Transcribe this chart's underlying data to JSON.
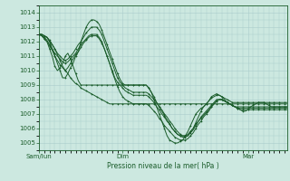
{
  "bg_color": "#cce8e0",
  "grid_color": "#aacccc",
  "line_color": "#1a5c2a",
  "xlabel": "Pression niveau de la mer( hPa )",
  "ylim": [
    1004.5,
    1014.5
  ],
  "yticks": [
    1005,
    1006,
    1007,
    1008,
    1009,
    1010,
    1011,
    1012,
    1013,
    1014
  ],
  "xlim": [
    0,
    95
  ],
  "xtick_positions": [
    0,
    32,
    80
  ],
  "xtick_labels": [
    "Sam/lun",
    "Dim",
    "Mar"
  ],
  "series": [
    [
      1012.5,
      1012.5,
      1012.4,
      1012.3,
      1012.1,
      1011.8,
      1011.5,
      1011.1,
      1010.7,
      1010.3,
      1010.0,
      1009.8,
      1009.5,
      1009.3,
      1009.1,
      1009.0,
      1008.8,
      1008.7,
      1008.6,
      1008.5,
      1008.4,
      1008.3,
      1008.2,
      1008.1,
      1008.0,
      1007.9,
      1007.8,
      1007.7,
      1007.7,
      1007.7,
      1007.7,
      1007.7,
      1007.7,
      1007.7,
      1007.7,
      1007.7,
      1007.7,
      1007.7,
      1007.7,
      1007.7,
      1007.7,
      1007.7,
      1007.7,
      1007.7,
      1007.7,
      1007.7,
      1007.7,
      1007.7,
      1007.7,
      1007.7,
      1007.7,
      1007.7,
      1007.7,
      1007.7,
      1007.7,
      1007.7,
      1007.7,
      1007.7,
      1007.7,
      1007.7,
      1007.7,
      1007.7,
      1007.7,
      1007.7,
      1007.7,
      1007.7,
      1007.7,
      1007.7,
      1007.7,
      1007.7,
      1007.7,
      1007.7,
      1007.7,
      1007.7,
      1007.7,
      1007.7,
      1007.7,
      1007.7,
      1007.7,
      1007.7,
      1007.7,
      1007.7,
      1007.7,
      1007.7,
      1007.7,
      1007.7,
      1007.7,
      1007.7,
      1007.7,
      1007.7,
      1007.7,
      1007.7,
      1007.7,
      1007.7,
      1007.7,
      1007.7
    ],
    [
      1012.5,
      1012.4,
      1012.2,
      1012.0,
      1011.5,
      1011.0,
      1010.3,
      1010.0,
      1010.2,
      1010.5,
      1011.0,
      1011.2,
      1010.8,
      1010.3,
      1009.8,
      1009.3,
      1009.0,
      1009.0,
      1009.0,
      1009.0,
      1009.0,
      1009.0,
      1009.0,
      1009.0,
      1009.0,
      1009.0,
      1009.0,
      1009.0,
      1009.0,
      1009.0,
      1009.0,
      1009.0,
      1009.0,
      1009.0,
      1009.0,
      1009.0,
      1009.0,
      1009.0,
      1009.0,
      1009.0,
      1009.0,
      1009.0,
      1008.8,
      1008.5,
      1008.2,
      1007.8,
      1007.5,
      1007.2,
      1006.9,
      1006.6,
      1006.3,
      1006.0,
      1005.8,
      1005.6,
      1005.5,
      1005.5,
      1005.5,
      1005.5,
      1005.8,
      1006.0,
      1006.4,
      1006.8,
      1007.2,
      1007.5,
      1007.7,
      1007.9,
      1008.1,
      1008.2,
      1008.3,
      1008.3,
      1008.2,
      1008.1,
      1008.0,
      1007.9,
      1007.8,
      1007.8,
      1007.8,
      1007.8,
      1007.8,
      1007.8,
      1007.8,
      1007.8,
      1007.8,
      1007.8,
      1007.8,
      1007.8,
      1007.8,
      1007.8,
      1007.8,
      1007.8,
      1007.8,
      1007.8,
      1007.8,
      1007.8,
      1007.8,
      1007.8
    ],
    [
      1012.5,
      1012.5,
      1012.4,
      1012.3,
      1012.0,
      1011.5,
      1011.0,
      1010.5,
      1010.0,
      1009.5,
      1009.5,
      1009.8,
      1010.2,
      1010.5,
      1011.0,
      1011.3,
      1012.0,
      1012.5,
      1013.0,
      1013.3,
      1013.5,
      1013.5,
      1013.4,
      1013.2,
      1012.8,
      1012.3,
      1011.8,
      1011.3,
      1010.8,
      1010.3,
      1009.8,
      1009.4,
      1009.1,
      1009.0,
      1009.0,
      1009.0,
      1009.0,
      1009.0,
      1009.0,
      1009.0,
      1009.0,
      1009.0,
      1008.8,
      1008.5,
      1008.0,
      1007.5,
      1007.0,
      1006.5,
      1006.0,
      1005.5,
      1005.2,
      1005.1,
      1005.0,
      1005.0,
      1005.1,
      1005.2,
      1005.5,
      1005.8,
      1006.2,
      1006.6,
      1007.0,
      1007.2,
      1007.4,
      1007.5,
      1007.7,
      1007.9,
      1008.2,
      1008.3,
      1008.4,
      1008.3,
      1008.2,
      1008.0,
      1007.8,
      1007.7,
      1007.6,
      1007.5,
      1007.4,
      1007.3,
      1007.2,
      1007.2,
      1007.3,
      1007.5,
      1007.6,
      1007.7,
      1007.8,
      1007.8,
      1007.8,
      1007.7,
      1007.6,
      1007.5,
      1007.5,
      1007.5,
      1007.5,
      1007.5,
      1007.5,
      1007.5
    ],
    [
      1012.5,
      1012.5,
      1012.4,
      1012.3,
      1012.0,
      1011.8,
      1011.5,
      1011.2,
      1011.0,
      1010.8,
      1010.7,
      1010.8,
      1011.0,
      1011.2,
      1011.5,
      1011.8,
      1012.0,
      1012.3,
      1012.6,
      1012.8,
      1013.0,
      1013.0,
      1013.0,
      1012.8,
      1012.5,
      1012.0,
      1011.5,
      1011.0,
      1010.5,
      1010.0,
      1009.5,
      1009.2,
      1009.0,
      1008.8,
      1008.7,
      1008.6,
      1008.5,
      1008.5,
      1008.5,
      1008.5,
      1008.5,
      1008.5,
      1008.4,
      1008.2,
      1008.0,
      1007.8,
      1007.5,
      1007.3,
      1007.0,
      1006.8,
      1006.5,
      1006.3,
      1006.0,
      1005.8,
      1005.6,
      1005.5,
      1005.5,
      1005.6,
      1005.8,
      1006.0,
      1006.3,
      1006.5,
      1006.8,
      1007.0,
      1007.2,
      1007.4,
      1007.6,
      1007.8,
      1008.0,
      1008.0,
      1008.0,
      1007.9,
      1007.8,
      1007.7,
      1007.6,
      1007.5,
      1007.5,
      1007.5,
      1007.5,
      1007.5,
      1007.5,
      1007.5,
      1007.5,
      1007.5,
      1007.5,
      1007.5,
      1007.5,
      1007.5,
      1007.5,
      1007.5,
      1007.5,
      1007.5,
      1007.5,
      1007.5,
      1007.5,
      1007.5
    ],
    [
      1012.5,
      1012.4,
      1012.3,
      1012.1,
      1011.8,
      1011.5,
      1011.2,
      1011.0,
      1010.8,
      1010.6,
      1010.5,
      1010.6,
      1010.8,
      1011.0,
      1011.2,
      1011.5,
      1011.8,
      1012.0,
      1012.2,
      1012.4,
      1012.5,
      1012.5,
      1012.5,
      1012.3,
      1012.0,
      1011.5,
      1011.0,
      1010.5,
      1010.0,
      1009.5,
      1009.2,
      1009.0,
      1008.8,
      1008.6,
      1008.5,
      1008.4,
      1008.3,
      1008.3,
      1008.3,
      1008.3,
      1008.3,
      1008.3,
      1008.2,
      1008.0,
      1007.8,
      1007.5,
      1007.3,
      1007.0,
      1006.8,
      1006.5,
      1006.3,
      1006.0,
      1005.8,
      1005.6,
      1005.5,
      1005.4,
      1005.4,
      1005.5,
      1005.7,
      1005.9,
      1006.2,
      1006.5,
      1006.7,
      1006.9,
      1007.1,
      1007.3,
      1007.5,
      1007.7,
      1007.9,
      1008.0,
      1008.0,
      1007.9,
      1007.8,
      1007.7,
      1007.6,
      1007.5,
      1007.4,
      1007.4,
      1007.4,
      1007.4,
      1007.4,
      1007.4,
      1007.4,
      1007.4,
      1007.4,
      1007.4,
      1007.4,
      1007.4,
      1007.4,
      1007.4,
      1007.4,
      1007.4,
      1007.4,
      1007.4,
      1007.4,
      1007.4
    ],
    [
      1012.5,
      1012.4,
      1012.2,
      1012.0,
      1011.7,
      1011.4,
      1011.0,
      1010.7,
      1010.4,
      1010.2,
      1010.0,
      1010.2,
      1010.5,
      1010.8,
      1011.1,
      1011.3,
      1011.6,
      1011.9,
      1012.1,
      1012.3,
      1012.4,
      1012.4,
      1012.4,
      1012.2,
      1011.9,
      1011.5,
      1011.0,
      1010.5,
      1009.9,
      1009.4,
      1008.9,
      1008.5,
      1008.2,
      1008.0,
      1007.9,
      1007.8,
      1007.7,
      1007.7,
      1007.7,
      1007.7,
      1007.7,
      1007.7,
      1007.6,
      1007.4,
      1007.2,
      1007.0,
      1006.7,
      1006.5,
      1006.2,
      1006.0,
      1005.8,
      1005.6,
      1005.4,
      1005.3,
      1005.2,
      1005.2,
      1005.2,
      1005.3,
      1005.5,
      1005.7,
      1006.0,
      1006.3,
      1006.5,
      1006.8,
      1007.0,
      1007.2,
      1007.5,
      1007.7,
      1007.9,
      1008.0,
      1008.0,
      1007.9,
      1007.8,
      1007.7,
      1007.6,
      1007.5,
      1007.4,
      1007.3,
      1007.3,
      1007.3,
      1007.3,
      1007.3,
      1007.3,
      1007.3,
      1007.3,
      1007.3,
      1007.3,
      1007.3,
      1007.3,
      1007.3,
      1007.3,
      1007.3,
      1007.3,
      1007.3,
      1007.3,
      1007.3
    ]
  ]
}
